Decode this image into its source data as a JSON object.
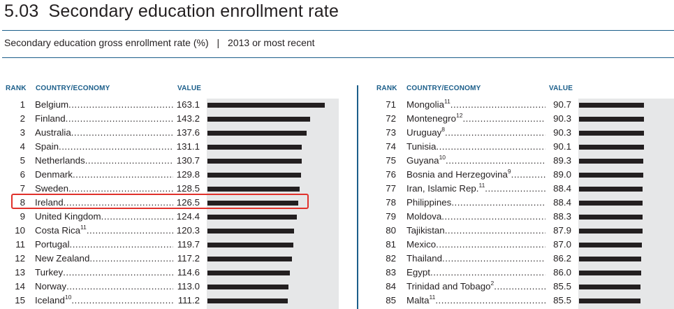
{
  "header": {
    "number": "5.03",
    "title": "Secondary education enrollment rate",
    "subtitle": "Secondary education gross enrollment rate",
    "unit": "(%)",
    "separator": "|",
    "period": "2013 or most recent"
  },
  "columns": {
    "rank": "RANK",
    "country": "COUNTRY/ECONOMY",
    "value": "VALUE"
  },
  "colors": {
    "accent": "#1b5e8a",
    "bar": "#231f20",
    "bar_background": "#e6e7e8",
    "highlight": "#e0312b"
  },
  "highlighted_country": "Ireland",
  "chart_data": {
    "type": "bar",
    "orientation": "horizontal",
    "title": "Secondary education enrollment rate",
    "ylabel": "",
    "xlabel": "",
    "panels": [
      {
        "rows": [
          {
            "rank": "1",
            "country": "Belgium",
            "note": "",
            "value": "163.1"
          },
          {
            "rank": "2",
            "country": "Finland",
            "note": "",
            "value": "143.2"
          },
          {
            "rank": "3",
            "country": "Australia",
            "note": "",
            "value": "137.6"
          },
          {
            "rank": "4",
            "country": "Spain",
            "note": "",
            "value": "131.1"
          },
          {
            "rank": "5",
            "country": "Netherlands",
            "note": "",
            "value": "130.7"
          },
          {
            "rank": "6",
            "country": "Denmark",
            "note": "",
            "value": "129.8"
          },
          {
            "rank": "7",
            "country": "Sweden",
            "note": "",
            "value": "128.5"
          },
          {
            "rank": "8",
            "country": "Ireland",
            "note": "",
            "value": "126.5"
          },
          {
            "rank": "9",
            "country": "United Kingdom",
            "note": "",
            "value": "124.4"
          },
          {
            "rank": "10",
            "country": "Costa Rica",
            "note": "11",
            "value": "120.3"
          },
          {
            "rank": "11",
            "country": "Portugal",
            "note": "",
            "value": "119.7"
          },
          {
            "rank": "12",
            "country": "New Zealand",
            "note": "",
            "value": "117.2"
          },
          {
            "rank": "13",
            "country": "Turkey",
            "note": "",
            "value": "114.6"
          },
          {
            "rank": "14",
            "country": "Norway",
            "note": "",
            "value": "113.0"
          },
          {
            "rank": "15",
            "country": "Iceland",
            "note": "10",
            "value": "111.2"
          }
        ]
      },
      {
        "rows": [
          {
            "rank": "71",
            "country": "Mongolia",
            "note": "11",
            "value": "90.7"
          },
          {
            "rank": "72",
            "country": "Montenegro",
            "note": "12",
            "value": "90.3"
          },
          {
            "rank": "73",
            "country": "Uruguay",
            "note": "8",
            "value": "90.3"
          },
          {
            "rank": "74",
            "country": "Tunisia",
            "note": "",
            "value": "90.1"
          },
          {
            "rank": "75",
            "country": "Guyana",
            "note": "10",
            "value": "89.3"
          },
          {
            "rank": "76",
            "country": "Bosnia and Herzegovina",
            "note": "9",
            "value": "89.0"
          },
          {
            "rank": "77",
            "country": "Iran, Islamic Rep.",
            "note": "11",
            "value": "88.4"
          },
          {
            "rank": "78",
            "country": "Philippines",
            "note": "",
            "value": "88.4"
          },
          {
            "rank": "79",
            "country": "Moldova",
            "note": "",
            "value": "88.3"
          },
          {
            "rank": "80",
            "country": "Tajikistan",
            "note": "",
            "value": "87.9"
          },
          {
            "rank": "81",
            "country": "Mexico",
            "note": "",
            "value": "87.0"
          },
          {
            "rank": "82",
            "country": "Thailand",
            "note": "",
            "value": "86.2"
          },
          {
            "rank": "83",
            "country": "Egypt",
            "note": "",
            "value": "86.0"
          },
          {
            "rank": "84",
            "country": "Trinidad and Tobago",
            "note": "2",
            "value": "85.5"
          },
          {
            "rank": "85",
            "country": "Malta",
            "note": "11",
            "value": "85.5"
          }
        ]
      }
    ]
  }
}
